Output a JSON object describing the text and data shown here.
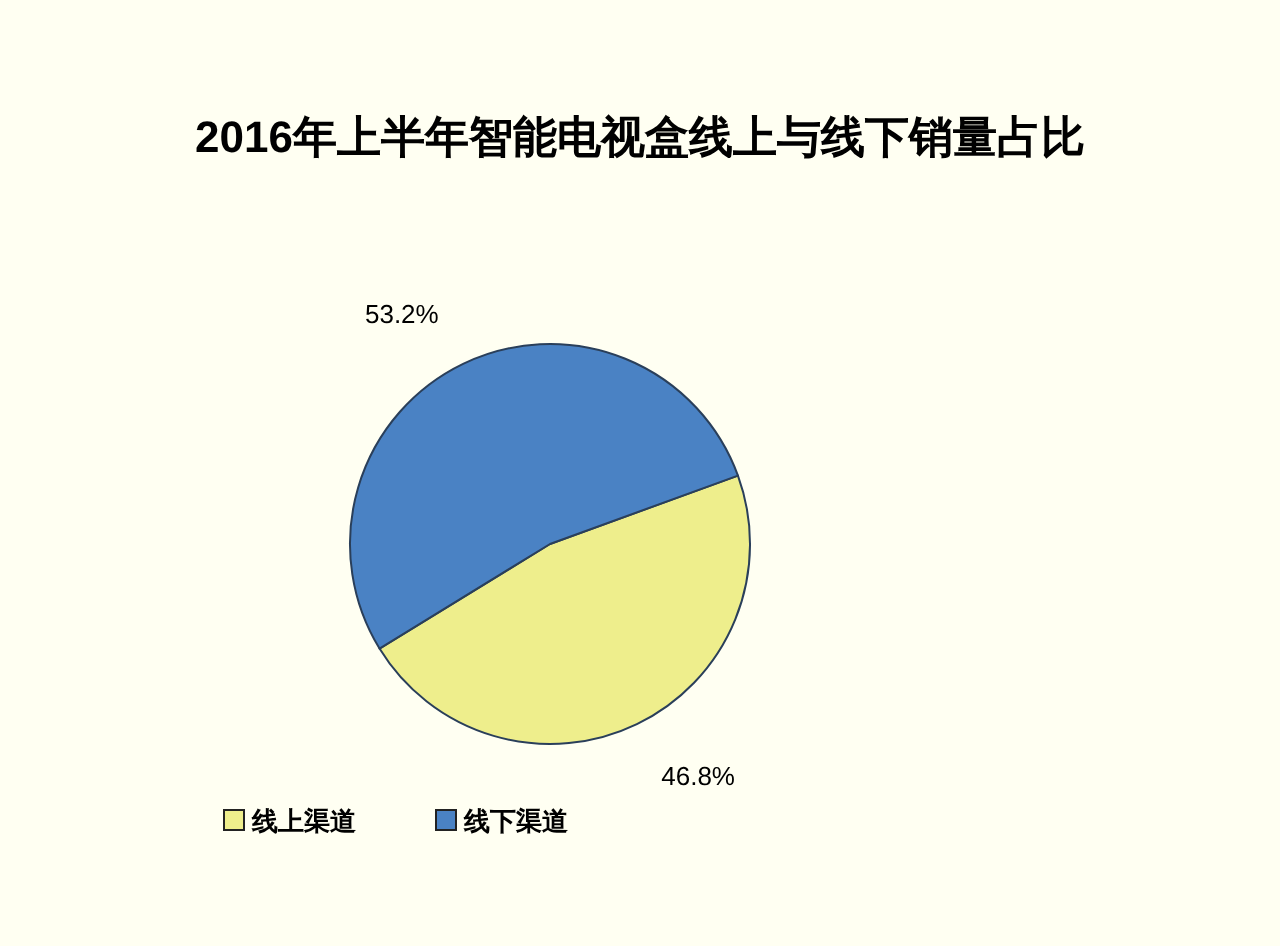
{
  "chart_data": {
    "type": "pie",
    "title": "2016年上半年智能电视盒线上与线下销量占比",
    "categories": [
      "线上渠道",
      "线下渠道"
    ],
    "values": [
      46.8,
      53.2
    ],
    "colors": [
      "#eeee8c",
      "#4a82c4"
    ],
    "value_labels": [
      "46.8%",
      "53.2%"
    ],
    "legend": "bottom left"
  }
}
